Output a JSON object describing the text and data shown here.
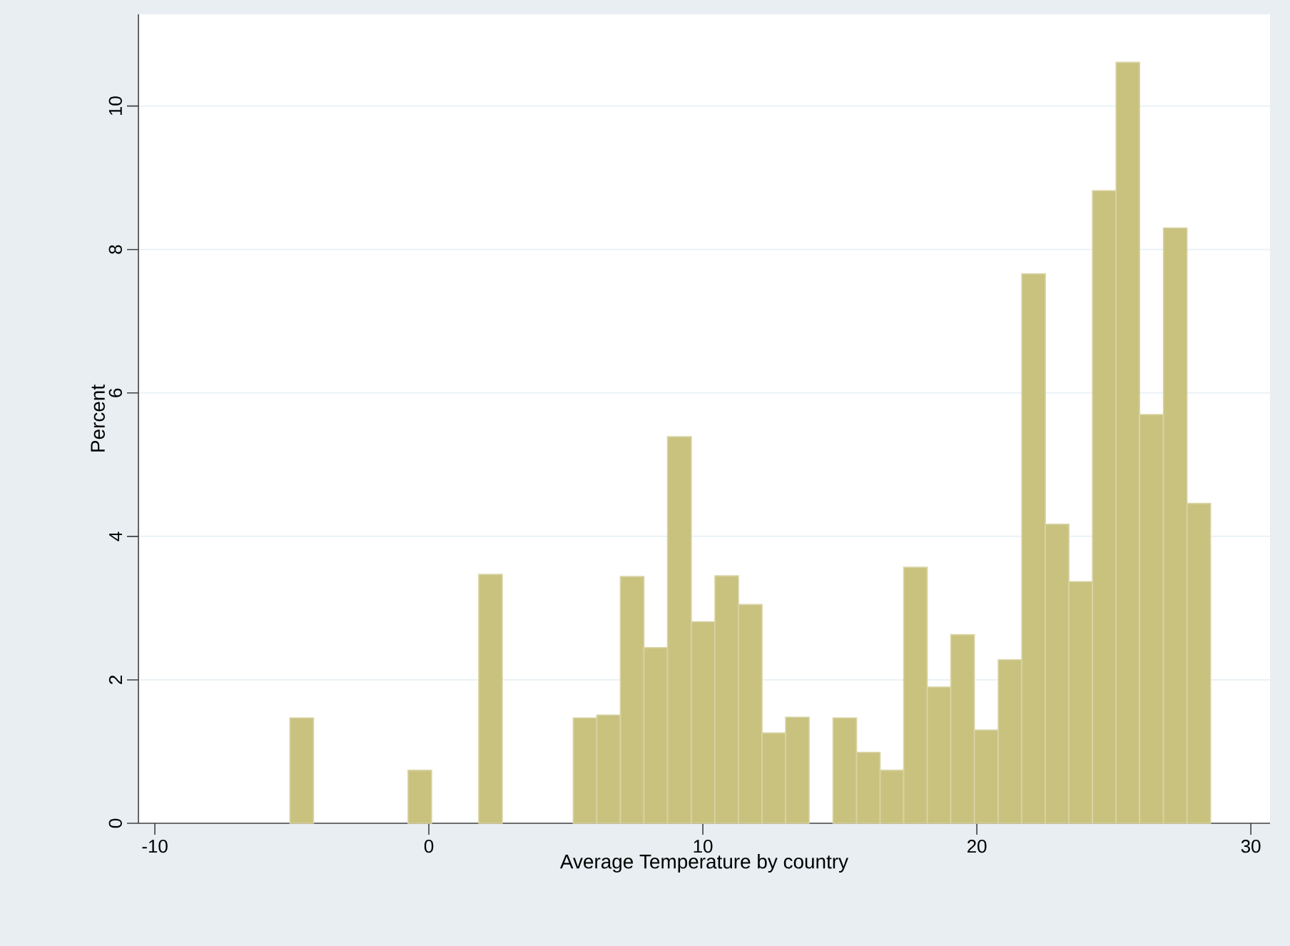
{
  "chart_data": {
    "type": "histogram",
    "xlabel": "Average Temperature by country",
    "ylabel": "Percent",
    "bins": [
      -5.07,
      -4.21,
      -3.35,
      -2.49,
      -1.62,
      -0.76,
      0.1,
      0.96,
      1.82,
      2.68,
      3.55,
      4.41,
      5.27,
      6.13,
      6.99,
      7.85,
      8.71,
      9.58,
      10.44,
      11.3,
      12.16,
      13.02,
      13.88,
      14.75,
      15.61,
      16.47,
      17.33,
      18.19,
      19.05,
      19.91,
      20.78,
      21.64,
      22.5,
      23.36,
      24.22,
      25.08,
      25.94,
      26.81,
      27.67,
      28.53
    ],
    "values": [
      1.47,
      0,
      0,
      0,
      0,
      0.74,
      0,
      0,
      3.47,
      0,
      0,
      0,
      1.47,
      1.51,
      3.44,
      2.45,
      5.39,
      2.81,
      3.45,
      3.05,
      1.26,
      1.48,
      0,
      1.47,
      0.99,
      0.74,
      3.57,
      1.9,
      2.63,
      1.3,
      2.28,
      7.66,
      4.17,
      3.37,
      8.82,
      10.61,
      5.7,
      8.3,
      4.46
    ],
    "color": "#c9c27f",
    "xlim": [
      -10.6,
      30.7
    ],
    "ylim": [
      0,
      11.28
    ],
    "xticks": [
      -10,
      0,
      10,
      20,
      30
    ],
    "yticks": [
      0,
      2,
      4,
      6,
      8,
      10
    ],
    "grid": "y"
  }
}
